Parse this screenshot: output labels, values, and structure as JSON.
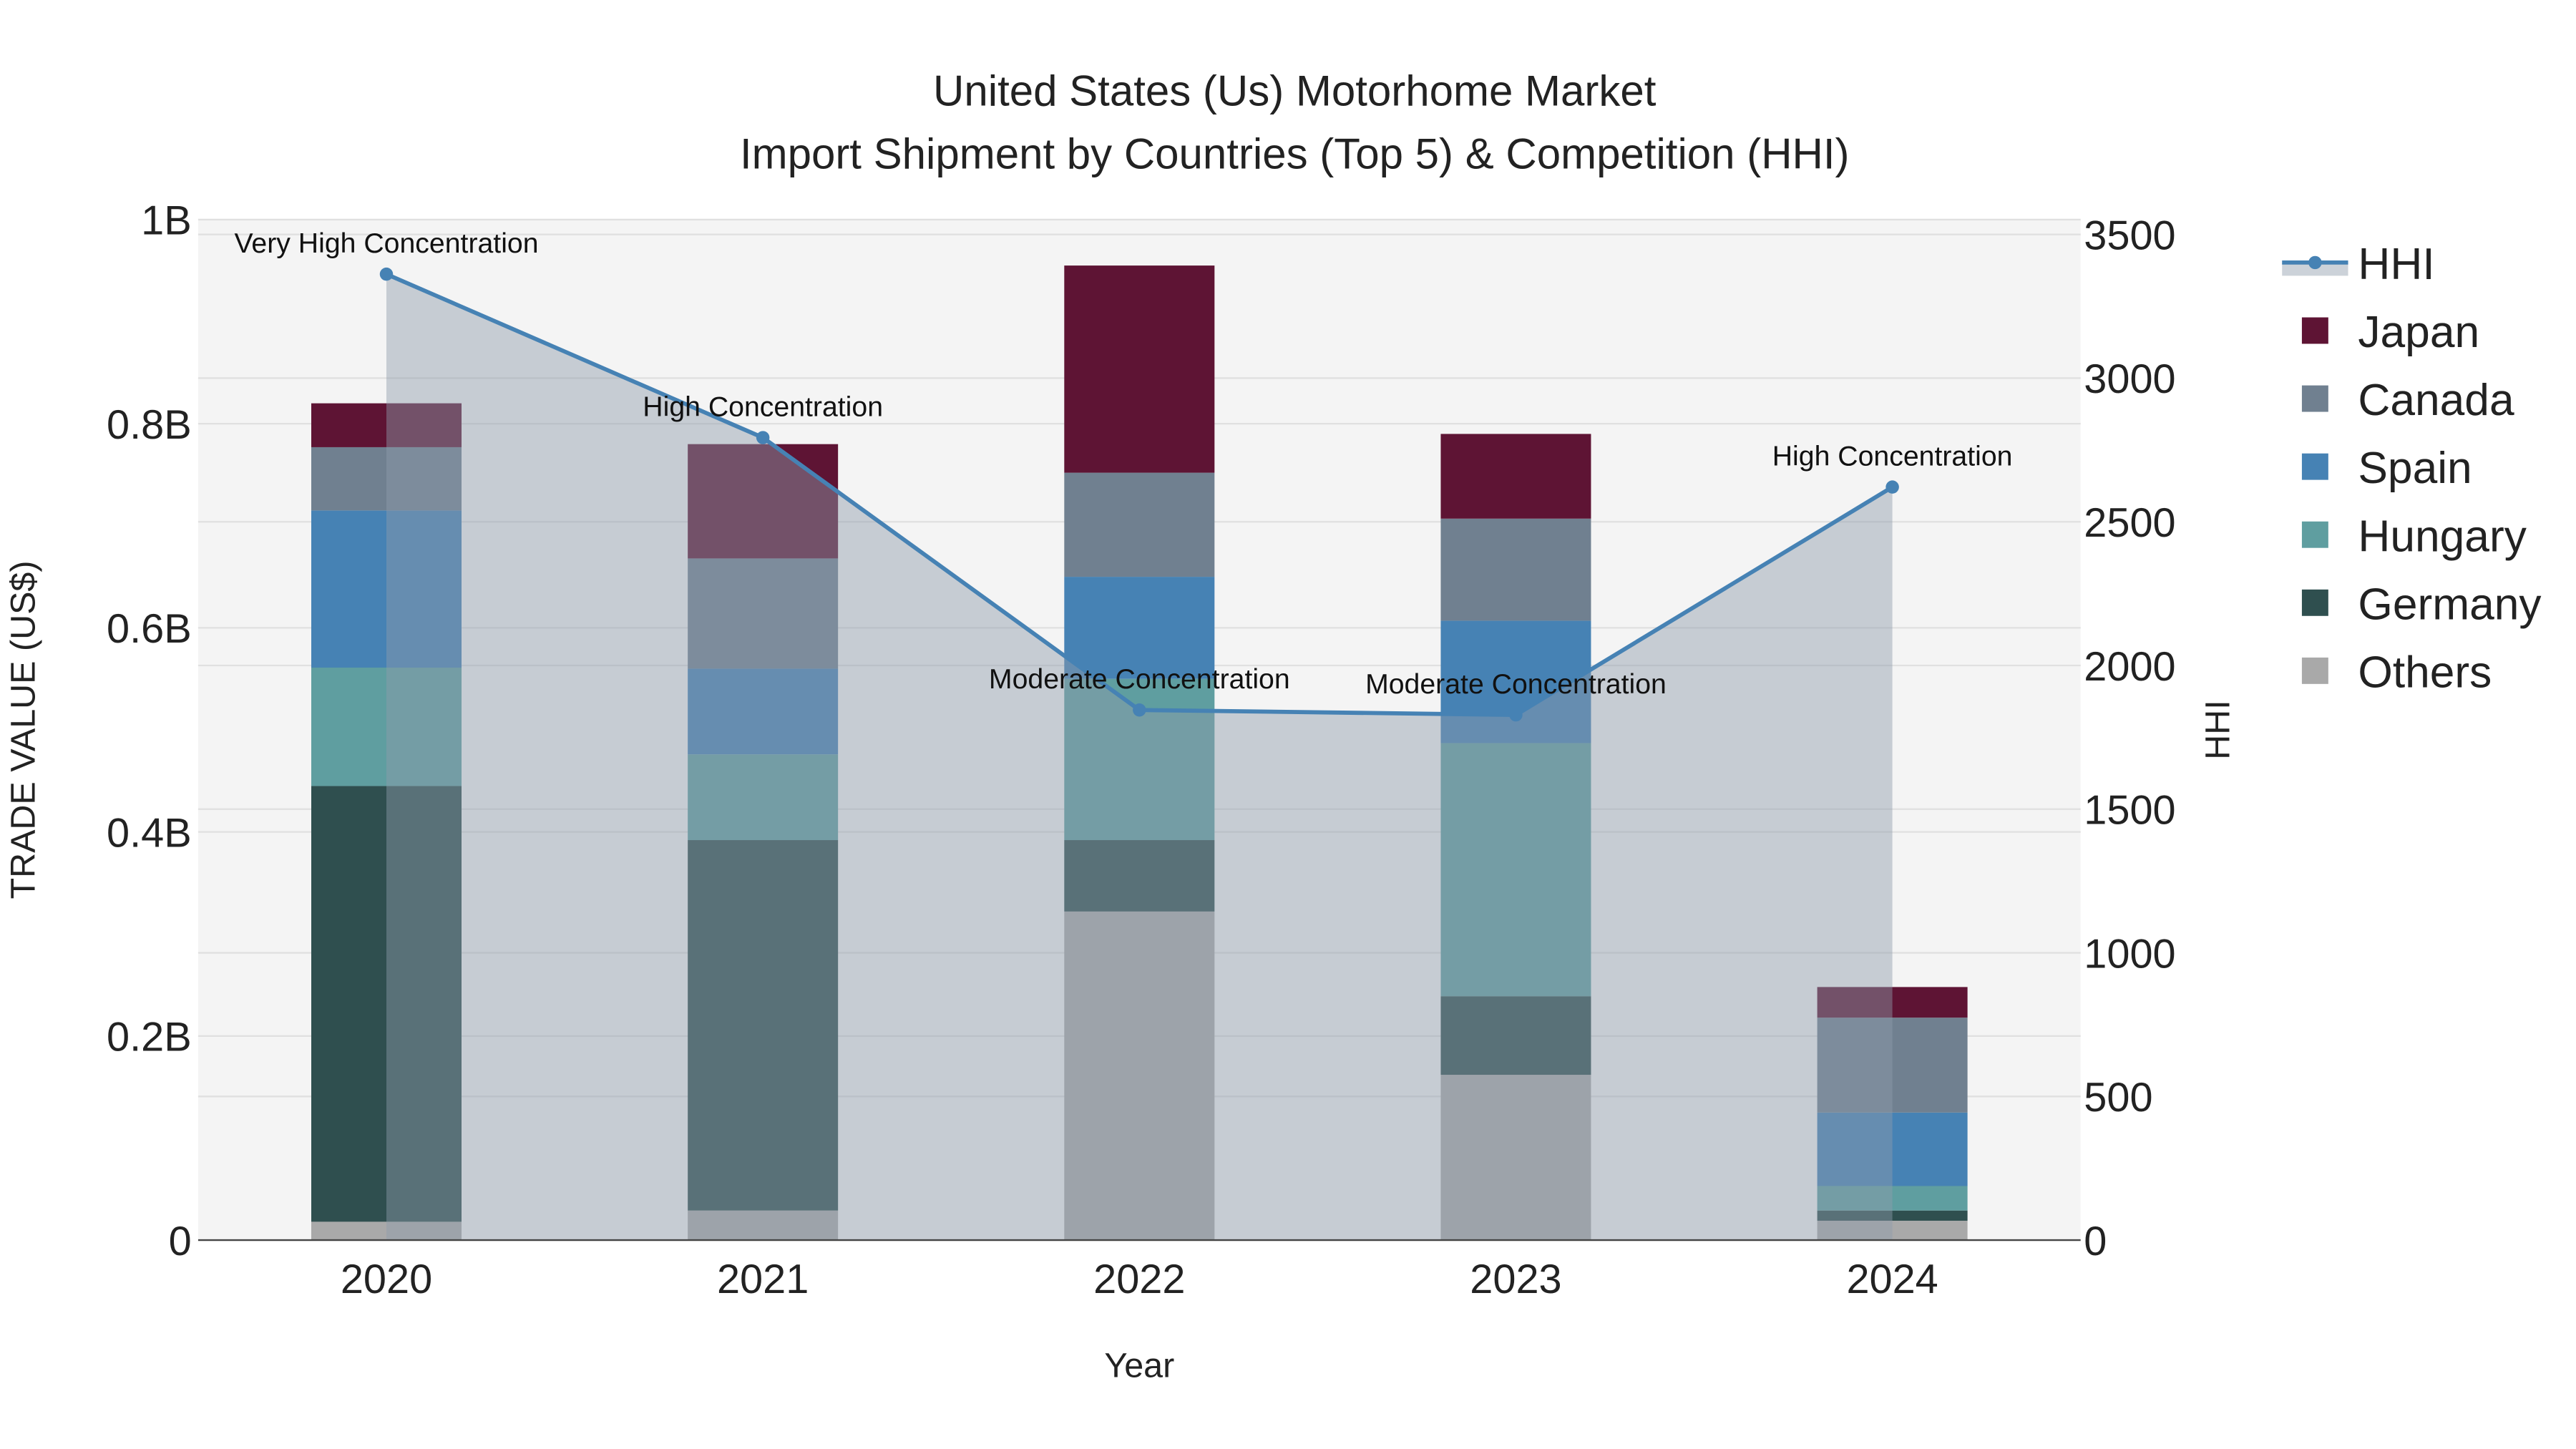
{
  "chart_data": {
    "type": "bar",
    "title": "United States (Us) Motorhome Market",
    "subtitle": "Import Shipment by Countries (Top 5) & Competition (HHI)",
    "xlabel": "Year",
    "ylabel": "TRADE VALUE (US$)",
    "y2label": "HHI",
    "categories": [
      "2020",
      "2021",
      "2022",
      "2023",
      "2024"
    ],
    "ylim": [
      0,
      1.0
    ],
    "y_ticks": [
      0,
      0.2,
      0.4,
      0.6,
      0.8,
      1.0
    ],
    "y_tick_labels": [
      "0",
      "0.2B",
      "0.4B",
      "0.6B",
      "0.8B",
      "1B"
    ],
    "y2lim": [
      0,
      3550
    ],
    "y2_ticks": [
      0,
      500,
      1000,
      1500,
      2000,
      2500,
      3000,
      3500
    ],
    "y2_tick_labels": [
      "0",
      "500",
      "1000",
      "1500",
      "2000",
      "2500",
      "3000",
      "3500"
    ],
    "stacked": true,
    "units": "billion US$",
    "series": [
      {
        "name": "Others",
        "color": "#a9a9a9",
        "values": [
          0.018,
          0.029,
          0.322,
          0.162,
          0.019
        ]
      },
      {
        "name": "Germany",
        "color": "#2f4f4f",
        "values": [
          0.427,
          0.363,
          0.07,
          0.077,
          0.01
        ]
      },
      {
        "name": "Hungary",
        "color": "#5f9ea0",
        "values": [
          0.116,
          0.084,
          0.158,
          0.248,
          0.024
        ]
      },
      {
        "name": "Spain",
        "color": "#4682b4",
        "values": [
          0.154,
          0.084,
          0.1,
          0.12,
          0.072
        ]
      },
      {
        "name": "Canada",
        "color": "#708090",
        "values": [
          0.062,
          0.108,
          0.102,
          0.1,
          0.093
        ]
      },
      {
        "name": "Japan",
        "color": "#5e1434",
        "values": [
          0.043,
          0.112,
          0.203,
          0.083,
          0.03
        ]
      }
    ],
    "hhi": {
      "name": "HHI",
      "color": "#4682b4",
      "values": [
        3362,
        2793,
        1845,
        1828,
        2621
      ],
      "annotations": [
        "Very High Concentration",
        "High Concentration",
        "Moderate Concentration",
        "Moderate Concentration",
        "High Concentration"
      ]
    },
    "legend": [
      "HHI",
      "Japan",
      "Canada",
      "Spain",
      "Hungary",
      "Germany",
      "Others"
    ],
    "legend_placement": "right",
    "grid": true
  }
}
